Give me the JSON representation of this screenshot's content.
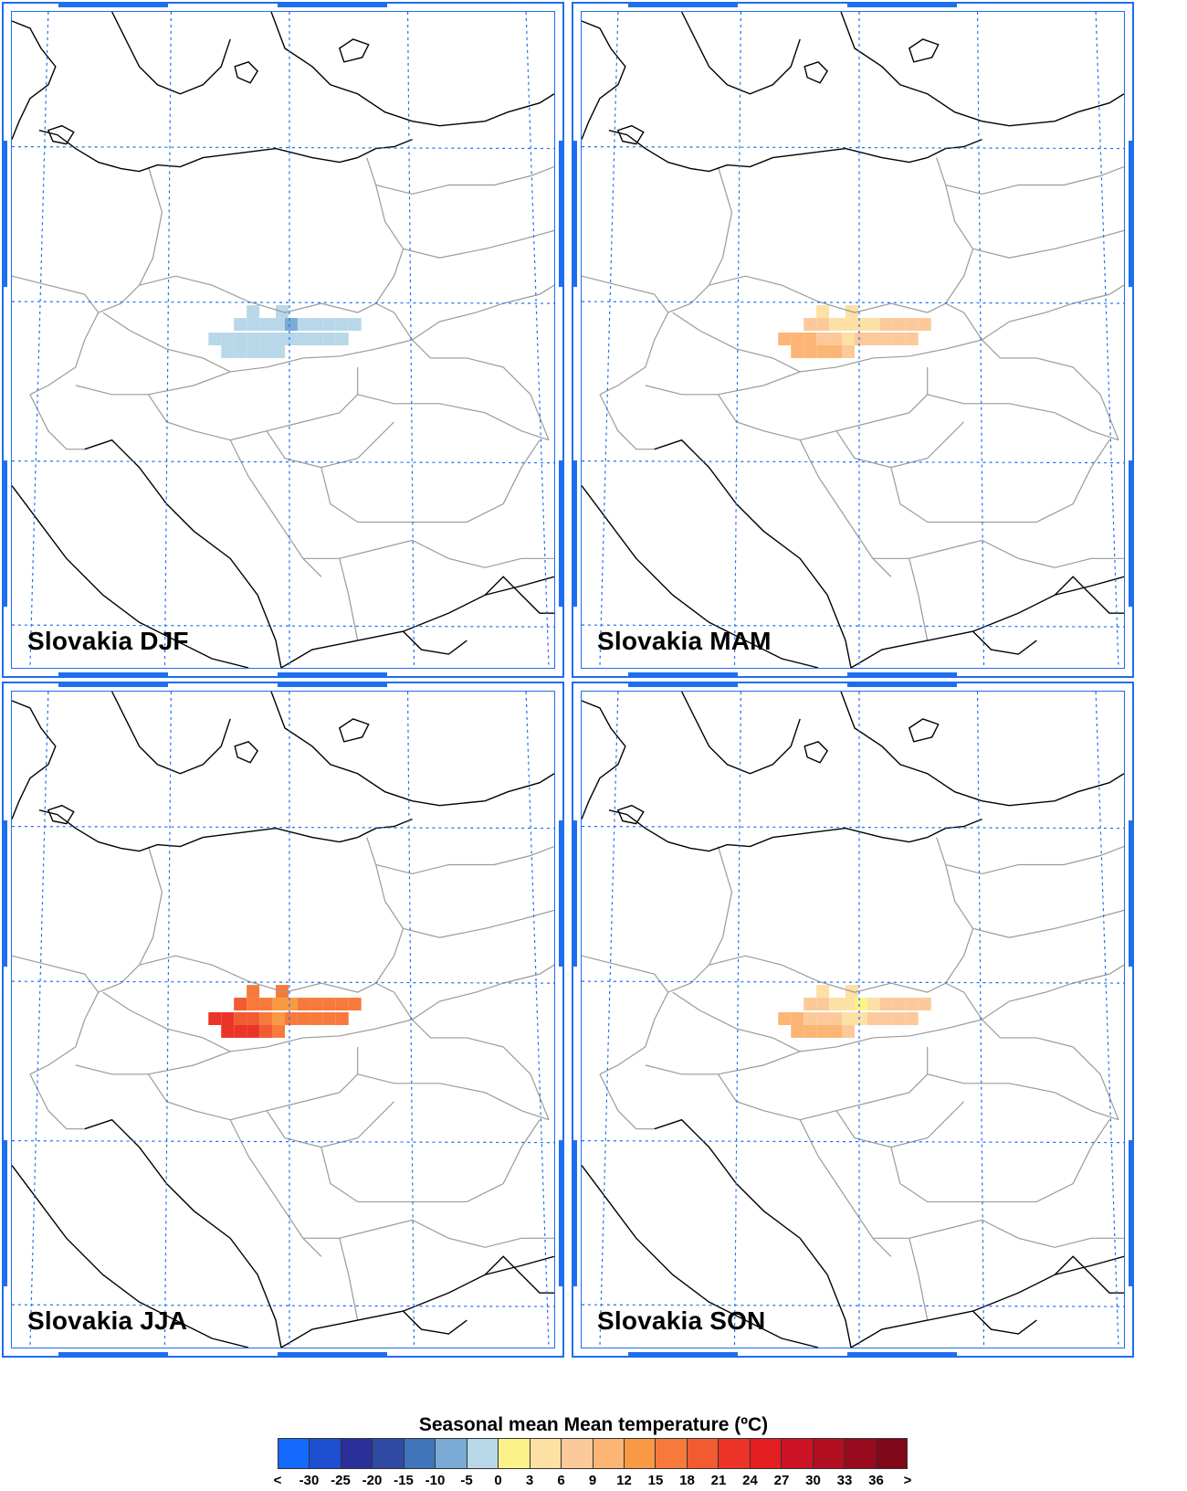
{
  "panels": [
    {
      "label": "Slovakia DJF",
      "season": "DJF"
    },
    {
      "label": "Slovakia MAM",
      "season": "MAM"
    },
    {
      "label": "Slovakia JJA",
      "season": "JJA"
    },
    {
      "label": "Slovakia SON",
      "season": "SON"
    }
  ],
  "legend": {
    "title": "Seasonal mean Mean temperature (ºC)",
    "tick_labels": [
      "<",
      "-30",
      "-25",
      "-20",
      "-15",
      "-10",
      "-5",
      "0",
      "3",
      "6",
      "9",
      "12",
      "15",
      "18",
      "21",
      "24",
      "27",
      "30",
      "33",
      "36",
      ">"
    ],
    "colors": [
      "#1469ff",
      "#1e4fd2",
      "#2a2f9a",
      "#2f4aa3",
      "#3f74bb",
      "#7aaad6",
      "#b8d8ea",
      "#fcf28a",
      "#fce0a4",
      "#fcc99a",
      "#fcb574",
      "#f99944",
      "#f77a3c",
      "#f25a32",
      "#ec3328",
      "#e51e22",
      "#cc1225",
      "#b20e22",
      "#980a1e",
      "#800818"
    ]
  },
  "colors": {
    "frame": "#1e6ef0",
    "grid": "#1e6ef0",
    "coast": "#000000",
    "border": "#9a9a9a"
  }
}
